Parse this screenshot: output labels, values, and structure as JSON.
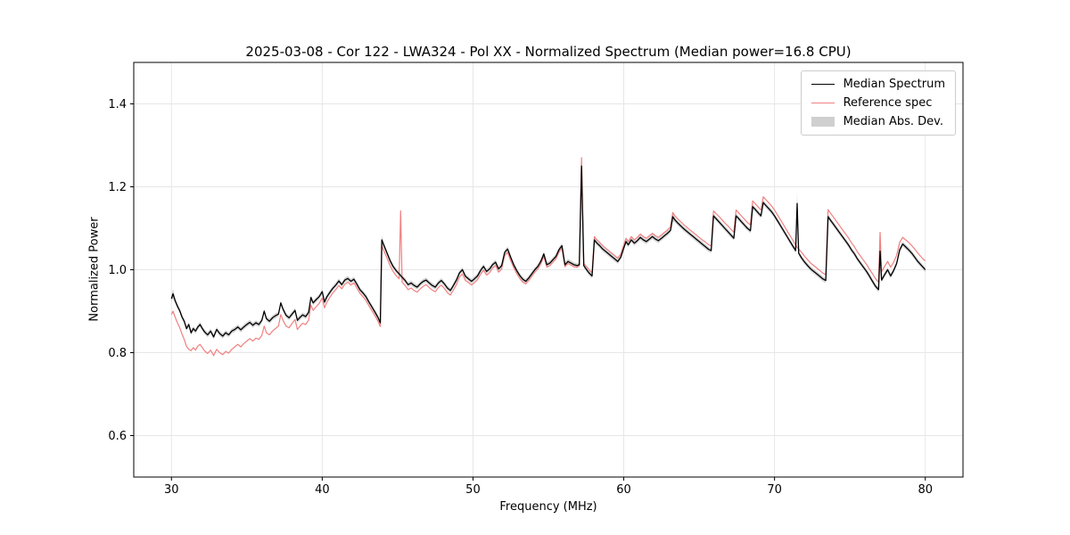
{
  "chart_data": {
    "type": "line",
    "title": "2025-03-08 - Cor 122 - LWA324 - Pol XX - Normalized Spectrum (Median power=16.8 CPU)",
    "xlabel": "Frequency (MHz)",
    "ylabel": "Normalized Power",
    "xlim": [
      27.5,
      82.5
    ],
    "ylim": [
      0.5,
      1.5
    ],
    "xticks": [
      30,
      40,
      50,
      60,
      70,
      80
    ],
    "yticks": [
      0.6,
      0.8,
      1.0,
      1.2,
      1.4
    ],
    "grid": true,
    "grid_color": "#e6e6e6",
    "legend_position": "upper right",
    "columns": [
      "frequency_mhz",
      "median_spectrum",
      "reference_spec"
    ],
    "series": [
      {
        "name": "Median Spectrum",
        "type": "line",
        "color": "#000000",
        "column": 1
      },
      {
        "name": "Reference spec",
        "type": "line",
        "color": "#f08080",
        "column": 2
      },
      {
        "name": "Median Abs. Dev.",
        "type": "band",
        "color": "#cfcfcf",
        "around_column": 1,
        "halfwidth": 0.006,
        "halfwidth_overrides": {
          "30.1": 0.012,
          "43.95": 0.01,
          "57.2": 0.028,
          "63.25": 0.012,
          "71.5": 0.028,
          "77": 0.04
        }
      }
    ],
    "points": [
      [
        30.0,
        0.93,
        0.892
      ],
      [
        30.1,
        0.942,
        0.9
      ],
      [
        30.25,
        0.925,
        0.885
      ],
      [
        30.4,
        0.912,
        0.872
      ],
      [
        30.55,
        0.901,
        0.86
      ],
      [
        30.7,
        0.886,
        0.845
      ],
      [
        30.85,
        0.876,
        0.832
      ],
      [
        31.0,
        0.858,
        0.815
      ],
      [
        31.15,
        0.868,
        0.808
      ],
      [
        31.3,
        0.848,
        0.805
      ],
      [
        31.45,
        0.858,
        0.812
      ],
      [
        31.6,
        0.852,
        0.806
      ],
      [
        31.75,
        0.862,
        0.816
      ],
      [
        31.9,
        0.868,
        0.82
      ],
      [
        32.05,
        0.858,
        0.812
      ],
      [
        32.2,
        0.85,
        0.804
      ],
      [
        32.4,
        0.843,
        0.798
      ],
      [
        32.6,
        0.852,
        0.806
      ],
      [
        32.8,
        0.838,
        0.793
      ],
      [
        33.0,
        0.856,
        0.808
      ],
      [
        33.2,
        0.846,
        0.8
      ],
      [
        33.4,
        0.84,
        0.795
      ],
      [
        33.6,
        0.848,
        0.803
      ],
      [
        33.8,
        0.843,
        0.799
      ],
      [
        34.0,
        0.852,
        0.808
      ],
      [
        34.2,
        0.856,
        0.814
      ],
      [
        34.4,
        0.862,
        0.82
      ],
      [
        34.6,
        0.855,
        0.814
      ],
      [
        34.8,
        0.862,
        0.822
      ],
      [
        35.0,
        0.868,
        0.828
      ],
      [
        35.2,
        0.873,
        0.834
      ],
      [
        35.4,
        0.866,
        0.828
      ],
      [
        35.6,
        0.872,
        0.835
      ],
      [
        35.8,
        0.868,
        0.832
      ],
      [
        36.0,
        0.878,
        0.842
      ],
      [
        36.15,
        0.9,
        0.864
      ],
      [
        36.3,
        0.882,
        0.848
      ],
      [
        36.5,
        0.876,
        0.843
      ],
      [
        36.7,
        0.884,
        0.852
      ],
      [
        36.9,
        0.889,
        0.858
      ],
      [
        37.1,
        0.893,
        0.864
      ],
      [
        37.25,
        0.92,
        0.892
      ],
      [
        37.4,
        0.905,
        0.878
      ],
      [
        37.6,
        0.89,
        0.864
      ],
      [
        37.8,
        0.884,
        0.86
      ],
      [
        38.0,
        0.893,
        0.87
      ],
      [
        38.2,
        0.902,
        0.88
      ],
      [
        38.35,
        0.878,
        0.856
      ],
      [
        38.5,
        0.884,
        0.863
      ],
      [
        38.7,
        0.891,
        0.871
      ],
      [
        38.9,
        0.887,
        0.868
      ],
      [
        39.1,
        0.897,
        0.878
      ],
      [
        39.25,
        0.933,
        0.915
      ],
      [
        39.4,
        0.92,
        0.902
      ],
      [
        39.6,
        0.928,
        0.911
      ],
      [
        39.8,
        0.935,
        0.919
      ],
      [
        40.0,
        0.947,
        0.932
      ],
      [
        40.15,
        0.922,
        0.908
      ],
      [
        40.3,
        0.934,
        0.921
      ],
      [
        40.5,
        0.945,
        0.933
      ],
      [
        40.7,
        0.955,
        0.944
      ],
      [
        40.9,
        0.963,
        0.952
      ],
      [
        41.1,
        0.973,
        0.962
      ],
      [
        41.3,
        0.964,
        0.954
      ],
      [
        41.5,
        0.975,
        0.965
      ],
      [
        41.7,
        0.979,
        0.97
      ],
      [
        41.9,
        0.972,
        0.963
      ],
      [
        42.1,
        0.977,
        0.968
      ],
      [
        42.3,
        0.965,
        0.956
      ],
      [
        42.5,
        0.952,
        0.943
      ],
      [
        42.7,
        0.944,
        0.935
      ],
      [
        42.9,
        0.935,
        0.926
      ],
      [
        43.1,
        0.922,
        0.913
      ],
      [
        43.3,
        0.91,
        0.901
      ],
      [
        43.5,
        0.898,
        0.889
      ],
      [
        43.7,
        0.885,
        0.876
      ],
      [
        43.85,
        0.872,
        0.863
      ],
      [
        43.95,
        1.072,
        1.058
      ],
      [
        44.1,
        1.058,
        1.045
      ],
      [
        44.3,
        1.04,
        1.028
      ],
      [
        44.5,
        1.022,
        1.01
      ],
      [
        44.7,
        1.008,
        0.996
      ],
      [
        44.9,
        0.998,
        0.986
      ],
      [
        45.1,
        0.99,
        0.978
      ],
      [
        45.2,
        0.986,
        1.142
      ],
      [
        45.3,
        0.982,
        0.97
      ],
      [
        45.5,
        0.974,
        0.962
      ],
      [
        45.7,
        0.964,
        0.952
      ],
      [
        45.9,
        0.968,
        0.956
      ],
      [
        46.1,
        0.962,
        0.95
      ],
      [
        46.3,
        0.958,
        0.946
      ],
      [
        46.5,
        0.966,
        0.954
      ],
      [
        46.7,
        0.972,
        0.96
      ],
      [
        46.9,
        0.975,
        0.964
      ],
      [
        47.1,
        0.968,
        0.957
      ],
      [
        47.3,
        0.962,
        0.951
      ],
      [
        47.5,
        0.958,
        0.947
      ],
      [
        47.7,
        0.968,
        0.957
      ],
      [
        47.9,
        0.974,
        0.963
      ],
      [
        48.1,
        0.966,
        0.955
      ],
      [
        48.3,
        0.956,
        0.945
      ],
      [
        48.5,
        0.95,
        0.939
      ],
      [
        48.7,
        0.962,
        0.951
      ],
      [
        48.9,
        0.975,
        0.964
      ],
      [
        49.1,
        0.992,
        0.982
      ],
      [
        49.3,
        1.0,
        0.99
      ],
      [
        49.5,
        0.984,
        0.974
      ],
      [
        49.7,
        0.978,
        0.969
      ],
      [
        49.9,
        0.972,
        0.963
      ],
      [
        50.1,
        0.978,
        0.969
      ],
      [
        50.3,
        0.985,
        0.976
      ],
      [
        50.5,
        0.998,
        0.989
      ],
      [
        50.7,
        1.008,
        0.999
      ],
      [
        50.9,
        0.996,
        0.987
      ],
      [
        51.1,
        1.002,
        0.993
      ],
      [
        51.3,
        1.012,
        1.004
      ],
      [
        51.5,
        1.018,
        1.01
      ],
      [
        51.7,
        1.002,
        0.994
      ],
      [
        51.9,
        1.01,
        1.002
      ],
      [
        52.1,
        1.042,
        1.034
      ],
      [
        52.3,
        1.05,
        1.042
      ],
      [
        52.5,
        1.03,
        1.022
      ],
      [
        52.7,
        1.012,
        1.005
      ],
      [
        52.9,
        0.998,
        0.991
      ],
      [
        53.1,
        0.986,
        0.979
      ],
      [
        53.3,
        0.977,
        0.97
      ],
      [
        53.5,
        0.972,
        0.966
      ],
      [
        53.7,
        0.98,
        0.974
      ],
      [
        53.9,
        0.99,
        0.984
      ],
      [
        54.1,
        1.0,
        0.994
      ],
      [
        54.3,
        1.008,
        1.002
      ],
      [
        54.5,
        1.02,
        1.014
      ],
      [
        54.7,
        1.038,
        1.032
      ],
      [
        54.9,
        1.012,
        1.006
      ],
      [
        55.1,
        1.016,
        1.01
      ],
      [
        55.3,
        1.024,
        1.018
      ],
      [
        55.5,
        1.032,
        1.026
      ],
      [
        55.7,
        1.048,
        1.042
      ],
      [
        55.9,
        1.058,
        1.052
      ],
      [
        56.1,
        1.012,
        1.007
      ],
      [
        56.3,
        1.02,
        1.015
      ],
      [
        56.5,
        1.016,
        1.011
      ],
      [
        56.7,
        1.012,
        1.007
      ],
      [
        56.9,
        1.01,
        1.006
      ],
      [
        57.05,
        1.012,
        1.01
      ],
      [
        57.2,
        1.25,
        1.27
      ],
      [
        57.35,
        1.01,
        1.015
      ],
      [
        57.5,
        1.002,
        1.009
      ],
      [
        57.7,
        0.992,
        1.0
      ],
      [
        57.9,
        0.985,
        0.993
      ],
      [
        58.05,
        1.072,
        1.08
      ],
      [
        58.2,
        1.065,
        1.073
      ],
      [
        58.4,
        1.058,
        1.066
      ],
      [
        58.6,
        1.05,
        1.058
      ],
      [
        58.8,
        1.044,
        1.052
      ],
      [
        59.0,
        1.038,
        1.046
      ],
      [
        59.2,
        1.032,
        1.04
      ],
      [
        59.4,
        1.026,
        1.034
      ],
      [
        59.6,
        1.02,
        1.028
      ],
      [
        59.8,
        1.03,
        1.038
      ],
      [
        60.0,
        1.052,
        1.06
      ],
      [
        60.15,
        1.068,
        1.076
      ],
      [
        60.3,
        1.06,
        1.068
      ],
      [
        60.5,
        1.072,
        1.08
      ],
      [
        60.7,
        1.064,
        1.072
      ],
      [
        60.9,
        1.07,
        1.078
      ],
      [
        61.1,
        1.078,
        1.086
      ],
      [
        61.3,
        1.072,
        1.08
      ],
      [
        61.5,
        1.068,
        1.076
      ],
      [
        61.7,
        1.074,
        1.082
      ],
      [
        61.9,
        1.08,
        1.088
      ],
      [
        62.1,
        1.074,
        1.082
      ],
      [
        62.3,
        1.07,
        1.078
      ],
      [
        62.5,
        1.076,
        1.084
      ],
      [
        62.7,
        1.082,
        1.09
      ],
      [
        62.9,
        1.088,
        1.096
      ],
      [
        63.1,
        1.095,
        1.104
      ],
      [
        63.25,
        1.128,
        1.138
      ],
      [
        63.4,
        1.12,
        1.13
      ],
      [
        63.6,
        1.112,
        1.122
      ],
      [
        63.8,
        1.105,
        1.115
      ],
      [
        64.0,
        1.098,
        1.108
      ],
      [
        64.2,
        1.092,
        1.102
      ],
      [
        64.4,
        1.086,
        1.096
      ],
      [
        64.6,
        1.08,
        1.09
      ],
      [
        64.8,
        1.074,
        1.084
      ],
      [
        65.0,
        1.068,
        1.078
      ],
      [
        65.2,
        1.062,
        1.072
      ],
      [
        65.4,
        1.056,
        1.067
      ],
      [
        65.6,
        1.05,
        1.061
      ],
      [
        65.8,
        1.046,
        1.057
      ],
      [
        65.95,
        1.13,
        1.142
      ],
      [
        66.1,
        1.124,
        1.136
      ],
      [
        66.3,
        1.116,
        1.129
      ],
      [
        66.5,
        1.108,
        1.121
      ],
      [
        66.7,
        1.1,
        1.113
      ],
      [
        66.9,
        1.092,
        1.106
      ],
      [
        67.1,
        1.084,
        1.098
      ],
      [
        67.3,
        1.076,
        1.09
      ],
      [
        67.45,
        1.13,
        1.144
      ],
      [
        67.6,
        1.124,
        1.138
      ],
      [
        67.8,
        1.116,
        1.13
      ],
      [
        68.0,
        1.108,
        1.122
      ],
      [
        68.2,
        1.1,
        1.114
      ],
      [
        68.4,
        1.094,
        1.108
      ],
      [
        68.55,
        1.152,
        1.166
      ],
      [
        68.7,
        1.146,
        1.16
      ],
      [
        68.9,
        1.138,
        1.152
      ],
      [
        69.1,
        1.13,
        1.144
      ],
      [
        69.25,
        1.162,
        1.176
      ],
      [
        69.4,
        1.156,
        1.17
      ],
      [
        69.6,
        1.148,
        1.162
      ],
      [
        69.8,
        1.14,
        1.154
      ],
      [
        70.0,
        1.13,
        1.144
      ],
      [
        70.2,
        1.118,
        1.132
      ],
      [
        70.4,
        1.106,
        1.12
      ],
      [
        70.6,
        1.094,
        1.108
      ],
      [
        70.8,
        1.082,
        1.096
      ],
      [
        71.0,
        1.07,
        1.084
      ],
      [
        71.2,
        1.058,
        1.072
      ],
      [
        71.4,
        1.046,
        1.06
      ],
      [
        71.5,
        1.16,
        1.054
      ],
      [
        71.6,
        1.04,
        1.05
      ],
      [
        71.8,
        1.028,
        1.042
      ],
      [
        72.0,
        1.018,
        1.032
      ],
      [
        72.2,
        1.01,
        1.024
      ],
      [
        72.4,
        1.002,
        1.016
      ],
      [
        72.6,
        0.996,
        1.01
      ],
      [
        72.8,
        0.99,
        1.004
      ],
      [
        73.0,
        0.984,
        0.998
      ],
      [
        73.2,
        0.978,
        0.992
      ],
      [
        73.4,
        0.974,
        0.988
      ],
      [
        73.55,
        1.128,
        1.145
      ],
      [
        73.7,
        1.12,
        1.137
      ],
      [
        73.9,
        1.11,
        1.127
      ],
      [
        74.1,
        1.1,
        1.117
      ],
      [
        74.3,
        1.09,
        1.107
      ],
      [
        74.5,
        1.08,
        1.097
      ],
      [
        74.7,
        1.07,
        1.087
      ],
      [
        74.9,
        1.06,
        1.077
      ],
      [
        75.1,
        1.048,
        1.065
      ],
      [
        75.3,
        1.038,
        1.055
      ],
      [
        75.5,
        1.026,
        1.043
      ],
      [
        75.7,
        1.016,
        1.033
      ],
      [
        75.9,
        1.006,
        1.023
      ],
      [
        76.1,
        0.996,
        1.013
      ],
      [
        76.3,
        0.984,
        1.001
      ],
      [
        76.5,
        0.972,
        0.99
      ],
      [
        76.7,
        0.96,
        0.978
      ],
      [
        76.9,
        0.952,
        0.97
      ],
      [
        77.0,
        1.045,
        1.09
      ],
      [
        77.1,
        0.975,
        0.995
      ],
      [
        77.3,
        0.988,
        1.008
      ],
      [
        77.5,
        1.0,
        1.02
      ],
      [
        77.7,
        0.985,
        1.006
      ],
      [
        77.9,
        0.998,
        1.018
      ],
      [
        78.1,
        1.015,
        1.035
      ],
      [
        78.3,
        1.048,
        1.066
      ],
      [
        78.5,
        1.062,
        1.078
      ],
      [
        78.7,
        1.055,
        1.072
      ],
      [
        78.9,
        1.048,
        1.066
      ],
      [
        79.1,
        1.04,
        1.058
      ],
      [
        79.3,
        1.03,
        1.05
      ],
      [
        79.5,
        1.02,
        1.04
      ],
      [
        79.7,
        1.012,
        1.032
      ],
      [
        79.9,
        1.004,
        1.024
      ],
      [
        80.0,
        1.0,
        1.022
      ]
    ]
  }
}
